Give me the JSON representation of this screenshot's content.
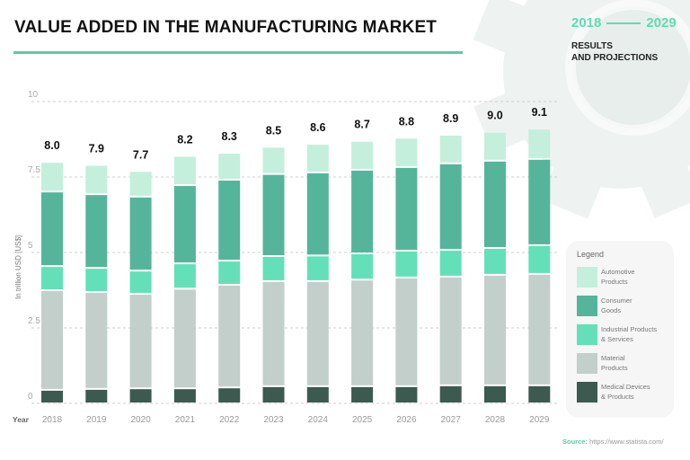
{
  "header": {
    "title": "VALUE ADDED IN THE MANUFACTURING MARKET",
    "range_start": "2018",
    "range_end": "2029",
    "subtitle_line1": "RESULTS",
    "subtitle_line2": "AND PROJECTIONS"
  },
  "source": {
    "label": "Source:",
    "url": "https://www.statista.com/"
  },
  "colors": {
    "accent": "#5fc9a4",
    "background_gear": "#eef3f1"
  },
  "chart_data": {
    "type": "bar",
    "stacked": true,
    "title": "VALUE ADDED IN THE MANUFACTURING MARKET",
    "xlabel": "Year",
    "ylabel": "In trillion USD [US$]",
    "ylim": [
      0,
      10
    ],
    "yticks": [
      "0",
      "2.5",
      "5",
      "7.5",
      "10"
    ],
    "ytick_values": [
      0,
      2.5,
      5,
      7.5,
      10
    ],
    "grid": true,
    "legend_title": "Legend",
    "legend_position": "right",
    "categories": [
      "2018",
      "2019",
      "2020",
      "2021",
      "2022",
      "2023",
      "2024",
      "2025",
      "2026",
      "2027",
      "2028",
      "2029"
    ],
    "totals": [
      "8.0",
      "7.9",
      "7.7",
      "8.2",
      "8.3",
      "8.5",
      "8.6",
      "8.7",
      "8.8",
      "8.9",
      "9.0",
      "9.1"
    ],
    "series": [
      {
        "name": "Medical Devices & Products",
        "legend_line1": "Medical Devices",
        "legend_line2": "& Products",
        "color": "#3c5a4f",
        "values": [
          0.45,
          0.48,
          0.5,
          0.5,
          0.53,
          0.57,
          0.57,
          0.57,
          0.57,
          0.6,
          0.6,
          0.6
        ]
      },
      {
        "name": "Material Products",
        "legend_line1": "Material",
        "legend_line2": "Products",
        "color": "#c2cfcb",
        "values": [
          3.3,
          3.21,
          3.13,
          3.3,
          3.4,
          3.48,
          3.48,
          3.53,
          3.6,
          3.6,
          3.66,
          3.69
        ]
      },
      {
        "name": "Industrial Products & Services",
        "legend_line1": "Industrial Products",
        "legend_line2": "& Services",
        "color": "#64e0b8",
        "values": [
          0.8,
          0.8,
          0.77,
          0.84,
          0.8,
          0.83,
          0.85,
          0.87,
          0.89,
          0.89,
          0.89,
          0.95
        ]
      },
      {
        "name": "Consumer Goods",
        "legend_line1": "Consumer",
        "legend_line2": "Goods",
        "color": "#55b59a",
        "values": [
          2.47,
          2.44,
          2.45,
          2.59,
          2.68,
          2.72,
          2.75,
          2.77,
          2.77,
          2.86,
          2.89,
          2.86
        ]
      },
      {
        "name": "Automotive Products",
        "legend_line1": "Automotive",
        "legend_line2": "Products",
        "color": "#c4efdd",
        "values": [
          0.98,
          0.97,
          0.85,
          0.97,
          0.89,
          0.9,
          0.95,
          0.96,
          0.97,
          0.95,
          0.96,
          1.0
        ]
      }
    ]
  }
}
